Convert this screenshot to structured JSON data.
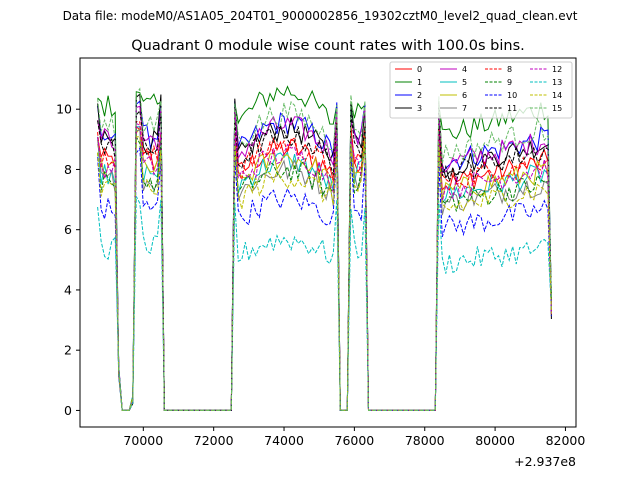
{
  "chart_data": {
    "type": "line",
    "suptitle": "Data file: modeM0/AS1A05_204T01_9000002856_19302cztM0_level2_quad_clean.evt",
    "title": "Quadrant 0 module wise count rates with 100.0s bins.",
    "xlabel": "",
    "ylabel": "",
    "x_offset_label": "+2.937e8",
    "xlim": [
      68200,
      82300
    ],
    "ylim": [
      -0.55,
      11.7
    ],
    "xticks": [
      70000,
      72000,
      74000,
      76000,
      78000,
      80000,
      82000
    ],
    "xtick_labels": [
      "70000",
      "72000",
      "74000",
      "76000",
      "78000",
      "80000",
      "82000"
    ],
    "yticks": [
      0,
      2,
      4,
      6,
      8,
      10
    ],
    "ytick_labels": [
      "0",
      "2",
      "4",
      "6",
      "8",
      "10"
    ],
    "legend_position": "top-right",
    "legend_columns": 4,
    "series": [
      {
        "name": "0",
        "color": "#ff0000",
        "dash": "solid",
        "level": 8.3,
        "peak": 9.4
      },
      {
        "name": "1",
        "color": "#008000",
        "dash": "solid",
        "level": 10.1,
        "peak": 10.6
      },
      {
        "name": "2",
        "color": "#0000ff",
        "dash": "solid",
        "level": 9.1,
        "peak": 10.3
      },
      {
        "name": "3",
        "color": "#000000",
        "dash": "solid",
        "level": 8.9,
        "peak": 10.5
      },
      {
        "name": "4",
        "color": "#bf00bf",
        "dash": "solid",
        "level": 9.0,
        "peak": 10.1
      },
      {
        "name": "5",
        "color": "#00bfbf",
        "dash": "solid",
        "level": 7.9,
        "peak": 9.3
      },
      {
        "name": "6",
        "color": "#bfbf00",
        "dash": "solid",
        "level": 8.0,
        "peak": 9.3
      },
      {
        "name": "7",
        "color": "#808080",
        "dash": "solid",
        "level": 7.6,
        "peak": 9.2
      },
      {
        "name": "8",
        "color": "#ff0000",
        "dash": "dashed",
        "level": 8.4,
        "peak": 9.6
      },
      {
        "name": "9",
        "color": "#008000",
        "dash": "dashed",
        "level": 7.6,
        "peak": 9.0
      },
      {
        "name": "10",
        "color": "#0000ff",
        "dash": "dashed",
        "level": 6.7,
        "peak": 8.6
      },
      {
        "name": "11",
        "color": "#000000",
        "dash": "dashed",
        "level": 8.7,
        "peak": 9.9
      },
      {
        "name": "12",
        "color": "#bf00bf",
        "dash": "dashed",
        "level": 8.1,
        "peak": 9.4
      },
      {
        "name": "13",
        "color": "#00bfbf",
        "dash": "dashed",
        "level": 5.4,
        "peak": 7.0
      },
      {
        "name": "14",
        "color": "#bfbf00",
        "dash": "dashed",
        "level": 7.4,
        "peak": 9.0
      },
      {
        "name": "15",
        "color": "#66bb66",
        "dash": "dashed",
        "level": 9.4,
        "peak": 10.6
      }
    ],
    "segments_note": "Count rate per module (counts/s) vs time; data gaps near zero between on-segments",
    "on_segments": [
      [
        68700,
        69300
      ],
      [
        69700,
        70550
      ],
      [
        72600,
        75500
      ],
      [
        75900,
        76350
      ],
      [
        78400,
        81600
      ]
    ]
  }
}
